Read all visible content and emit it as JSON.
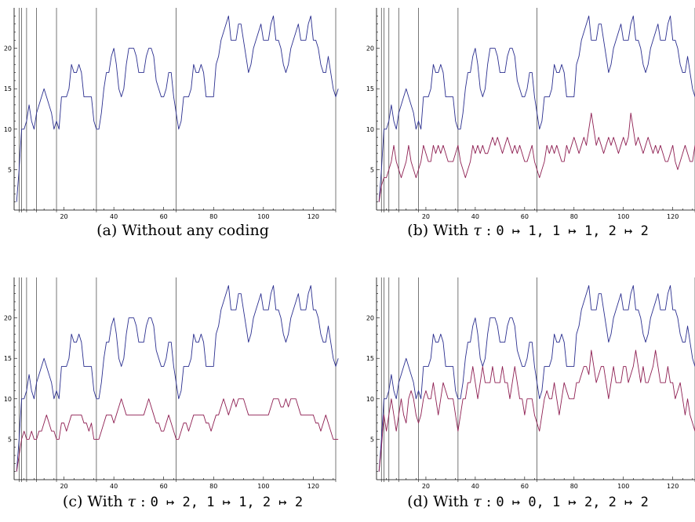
{
  "colors": {
    "series_blue": "#2b2f8f",
    "series_red": "#8e1f52",
    "axis": "#000000",
    "vline": "#555555"
  },
  "chart_data": [
    {
      "type": "line",
      "caption": "(a) Without any coding",
      "xlim": [
        0,
        129
      ],
      "ylim": [
        0,
        25
      ],
      "x_ticks": [
        "20",
        "40",
        "60",
        "80",
        "100",
        "120"
      ],
      "y_ticks": [
        "5",
        "10",
        "15",
        "20"
      ],
      "vlines": [
        2,
        3,
        5,
        9,
        17,
        33,
        65,
        129
      ],
      "series": [
        {
          "color": "blue",
          "values": [
            1,
            5,
            10,
            10,
            11,
            13,
            11,
            10,
            12,
            13,
            14,
            15,
            14,
            13,
            12,
            10,
            11,
            10,
            14,
            14,
            14,
            15,
            18,
            17,
            17,
            18,
            17,
            14,
            14,
            14,
            14,
            11,
            10,
            10,
            12,
            15,
            17,
            17,
            19,
            20,
            18,
            15,
            14,
            15,
            18,
            20,
            20,
            20,
            19,
            17,
            17,
            17,
            19,
            20,
            20,
            19,
            16,
            15,
            14,
            14,
            15,
            17,
            17,
            14,
            12,
            10,
            11,
            14,
            14,
            14,
            15,
            18,
            17,
            17,
            18,
            17,
            14,
            14,
            14,
            14,
            18,
            19,
            21,
            22,
            23,
            24,
            21,
            21,
            21,
            23,
            23,
            21,
            19,
            17,
            18,
            20,
            21,
            22,
            23,
            21,
            21,
            21,
            23,
            24,
            21,
            21,
            20,
            18,
            17,
            18,
            20,
            21,
            22,
            23,
            21,
            21,
            21,
            23,
            24,
            21,
            21,
            20,
            18,
            17,
            17,
            19,
            17,
            15,
            14,
            15
          ]
        }
      ]
    },
    {
      "type": "line",
      "caption": "(b) With τ : 0 ↦ 1, 1 ↦ 1, 2 ↦ 2",
      "caption_parts": {
        "prefix": "(b) With ",
        "tau": "τ",
        "colon": " : ",
        "map": "0 ↦ 1, 1 ↦ 1, 2 ↦ 2"
      },
      "xlim": [
        0,
        129
      ],
      "ylim": [
        0,
        25
      ],
      "x_ticks": [
        "20",
        "40",
        "60",
        "80",
        "100",
        "120"
      ],
      "y_ticks": [
        "5",
        "10",
        "15",
        "20"
      ],
      "vlines": [
        2,
        3,
        5,
        9,
        17,
        33,
        65,
        129
      ],
      "series": [
        {
          "color": "blue",
          "values": [
            1,
            5,
            10,
            10,
            11,
            13,
            11,
            10,
            12,
            13,
            14,
            15,
            14,
            13,
            12,
            10,
            11,
            10,
            14,
            14,
            14,
            15,
            18,
            17,
            17,
            18,
            17,
            14,
            14,
            14,
            14,
            11,
            10,
            10,
            12,
            15,
            17,
            17,
            19,
            20,
            18,
            15,
            14,
            15,
            18,
            20,
            20,
            20,
            19,
            17,
            17,
            17,
            19,
            20,
            20,
            19,
            16,
            15,
            14,
            14,
            15,
            17,
            17,
            14,
            12,
            10,
            11,
            14,
            14,
            14,
            15,
            18,
            17,
            17,
            18,
            17,
            14,
            14,
            14,
            14,
            18,
            19,
            21,
            22,
            23,
            24,
            21,
            21,
            21,
            23,
            23,
            21,
            19,
            17,
            18,
            20,
            21,
            22,
            23,
            21,
            21,
            21,
            23,
            24,
            21,
            21,
            20,
            18,
            17,
            18,
            20,
            21,
            22,
            23,
            21,
            21,
            21,
            23,
            24,
            21,
            21,
            20,
            18,
            17,
            17,
            19,
            17,
            15,
            14,
            15
          ]
        },
        {
          "color": "red",
          "values": [
            1,
            3,
            4,
            4,
            5,
            6,
            8,
            6,
            5,
            4,
            5,
            6,
            8,
            6,
            5,
            4,
            5,
            6,
            8,
            7,
            6,
            6,
            8,
            7,
            8,
            7,
            8,
            7,
            6,
            6,
            6,
            7,
            8,
            6,
            5,
            4,
            5,
            6,
            8,
            7,
            8,
            7,
            8,
            7,
            7,
            8,
            9,
            8,
            9,
            8,
            7,
            8,
            9,
            8,
            7,
            8,
            7,
            8,
            7,
            6,
            6,
            7,
            8,
            6,
            5,
            4,
            5,
            6,
            8,
            7,
            8,
            7,
            8,
            7,
            6,
            6,
            8,
            7,
            8,
            9,
            8,
            7,
            8,
            9,
            8,
            10,
            12,
            10,
            8,
            9,
            8,
            7,
            8,
            9,
            8,
            9,
            8,
            7,
            8,
            9,
            8,
            9,
            12,
            10,
            8,
            9,
            8,
            7,
            8,
            9,
            8,
            7,
            8,
            7,
            8,
            7,
            6,
            6,
            7,
            8,
            6,
            5,
            6,
            7,
            8,
            7,
            6,
            6,
            8,
            7,
            6,
            5
          ]
        }
      ]
    },
    {
      "type": "line",
      "caption": "(c) With τ : 0 ↦ 2, 1 ↦ 1, 2 ↦ 2",
      "caption_parts": {
        "prefix": "(c) With ",
        "tau": "τ",
        "colon": " : ",
        "map": "0 ↦ 2, 1 ↦ 1, 2 ↦ 2"
      },
      "xlim": [
        0,
        129
      ],
      "ylim": [
        0,
        25
      ],
      "x_ticks": [
        "20",
        "40",
        "60",
        "80",
        "100",
        "120"
      ],
      "y_ticks": [
        "5",
        "10",
        "15",
        "20"
      ],
      "vlines": [
        2,
        3,
        5,
        9,
        17,
        33,
        65,
        129
      ],
      "series": [
        {
          "color": "blue",
          "values": [
            1,
            5,
            10,
            10,
            11,
            13,
            11,
            10,
            12,
            13,
            14,
            15,
            14,
            13,
            12,
            10,
            11,
            10,
            14,
            14,
            14,
            15,
            18,
            17,
            17,
            18,
            17,
            14,
            14,
            14,
            14,
            11,
            10,
            10,
            12,
            15,
            17,
            17,
            19,
            20,
            18,
            15,
            14,
            15,
            18,
            20,
            20,
            20,
            19,
            17,
            17,
            17,
            19,
            20,
            20,
            19,
            16,
            15,
            14,
            14,
            15,
            17,
            17,
            14,
            12,
            10,
            11,
            14,
            14,
            14,
            15,
            18,
            17,
            17,
            18,
            17,
            14,
            14,
            14,
            14,
            18,
            19,
            21,
            22,
            23,
            24,
            21,
            21,
            21,
            23,
            23,
            21,
            19,
            17,
            18,
            20,
            21,
            22,
            23,
            21,
            21,
            21,
            23,
            24,
            21,
            21,
            20,
            18,
            17,
            18,
            20,
            21,
            22,
            23,
            21,
            21,
            21,
            23,
            24,
            21,
            21,
            20,
            18,
            17,
            17,
            19,
            17,
            15,
            14,
            15
          ]
        },
        {
          "color": "red",
          "values": [
            1,
            3,
            5,
            6,
            5,
            5,
            6,
            5,
            5,
            6,
            6,
            7,
            8,
            7,
            6,
            6,
            5,
            5,
            7,
            7,
            6,
            7,
            8,
            8,
            8,
            8,
            8,
            7,
            7,
            6,
            7,
            5,
            5,
            5,
            6,
            7,
            8,
            8,
            8,
            7,
            8,
            9,
            10,
            9,
            8,
            8,
            8,
            8,
            8,
            8,
            8,
            8,
            9,
            10,
            9,
            8,
            7,
            7,
            6,
            6,
            7,
            8,
            7,
            6,
            5,
            5,
            6,
            7,
            7,
            6,
            7,
            8,
            8,
            8,
            8,
            8,
            7,
            7,
            6,
            7,
            8,
            8,
            9,
            10,
            9,
            8,
            9,
            10,
            9,
            10,
            10,
            10,
            9,
            8,
            8,
            8,
            8,
            8,
            8,
            8,
            8,
            8,
            9,
            10,
            10,
            10,
            9,
            9,
            10,
            9,
            10,
            10,
            10,
            9,
            8,
            8,
            8,
            8,
            8,
            8,
            7,
            7,
            6,
            7,
            8,
            7,
            6,
            5,
            5,
            5
          ]
        }
      ]
    },
    {
      "type": "line",
      "caption": "(d) With τ : 0 ↦ 0, 1 ↦ 2, 2 ↦ 2",
      "caption_parts": {
        "prefix": "(d) With ",
        "tau": "τ",
        "colon": " : ",
        "map": "0 ↦ 0, 1 ↦ 2, 2 ↦ 2"
      },
      "xlim": [
        0,
        129
      ],
      "ylim": [
        0,
        25
      ],
      "x_ticks": [
        "20",
        "40",
        "60",
        "80",
        "100",
        "120"
      ],
      "y_ticks": [
        "5",
        "10",
        "15",
        "20"
      ],
      "vlines": [
        2,
        3,
        5,
        9,
        17,
        33,
        65,
        129
      ],
      "series": [
        {
          "color": "blue",
          "values": [
            1,
            5,
            10,
            10,
            11,
            13,
            11,
            10,
            12,
            13,
            14,
            15,
            14,
            13,
            12,
            10,
            11,
            10,
            14,
            14,
            14,
            15,
            18,
            17,
            17,
            18,
            17,
            14,
            14,
            14,
            14,
            11,
            10,
            10,
            12,
            15,
            17,
            17,
            19,
            20,
            18,
            15,
            14,
            15,
            18,
            20,
            20,
            20,
            19,
            17,
            17,
            17,
            19,
            20,
            20,
            19,
            16,
            15,
            14,
            14,
            15,
            17,
            17,
            14,
            12,
            10,
            11,
            14,
            14,
            14,
            15,
            18,
            17,
            17,
            18,
            17,
            14,
            14,
            14,
            14,
            18,
            19,
            21,
            22,
            23,
            24,
            21,
            21,
            21,
            23,
            23,
            21,
            19,
            17,
            18,
            20,
            21,
            22,
            23,
            21,
            21,
            21,
            23,
            24,
            21,
            21,
            20,
            18,
            17,
            18,
            20,
            21,
            22,
            23,
            21,
            21,
            21,
            23,
            24,
            21,
            21,
            20,
            18,
            17,
            17,
            19,
            17,
            15,
            14,
            15
          ]
        },
        {
          "color": "red",
          "values": [
            1,
            4,
            8,
            6,
            8,
            10,
            8,
            6,
            8,
            10,
            8,
            7,
            10,
            11,
            10,
            8,
            7,
            8,
            10,
            11,
            10,
            10,
            12,
            10,
            8,
            10,
            12,
            11,
            10,
            10,
            10,
            8,
            6,
            8,
            10,
            10,
            12,
            12,
            14,
            12,
            10,
            12,
            14,
            12,
            12,
            12,
            14,
            12,
            12,
            12,
            14,
            12,
            12,
            10,
            12,
            14,
            12,
            10,
            10,
            8,
            10,
            10,
            10,
            8,
            7,
            6,
            8,
            10,
            11,
            10,
            10,
            12,
            10,
            8,
            10,
            12,
            11,
            10,
            10,
            10,
            12,
            12,
            13,
            14,
            14,
            13,
            16,
            14,
            12,
            13,
            14,
            14,
            12,
            10,
            12,
            14,
            12,
            12,
            12,
            14,
            14,
            12,
            13,
            14,
            16,
            14,
            12,
            14,
            12,
            12,
            13,
            14,
            16,
            14,
            12,
            12,
            12,
            14,
            12,
            12,
            10,
            11,
            12,
            10,
            8,
            10,
            8,
            7,
            6,
            6
          ]
        }
      ]
    }
  ]
}
